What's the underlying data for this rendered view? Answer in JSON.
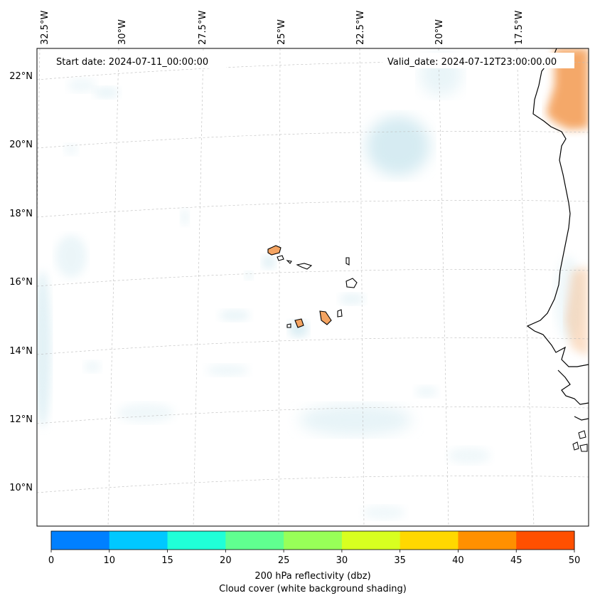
{
  "map": {
    "start_label": "Start date: 2024-07-11_00:00:00",
    "valid_label": "Valid_date: 2024-07-12T23:00:00.00",
    "lon_labels": [
      "32.5°W",
      "30°W",
      "27.5°W",
      "25°W",
      "22.5°W",
      "20°W",
      "17.5°W"
    ],
    "lat_labels": [
      "22°N",
      "20°N",
      "18°N",
      "16°N",
      "14°N",
      "12°N",
      "10°N"
    ]
  },
  "colorbar": {
    "ticks": [
      "0",
      "10",
      "15",
      "20",
      "25",
      "30",
      "35",
      "40",
      "45",
      "50"
    ],
    "colors": [
      "#0080ff",
      "#00c8ff",
      "#20ffd8",
      "#60ff90",
      "#98ff58",
      "#d8ff20",
      "#ffd800",
      "#ff9000",
      "#ff5000"
    ],
    "label_line1": "200 hPa reflectivity (dbz)",
    "label_line2": "Cloud cover (white background shading)"
  },
  "colors": {
    "cloud": "#cfe8f0",
    "land_fill": "#f4a462",
    "coast": "#000000",
    "grid": "#bbbbbb"
  }
}
